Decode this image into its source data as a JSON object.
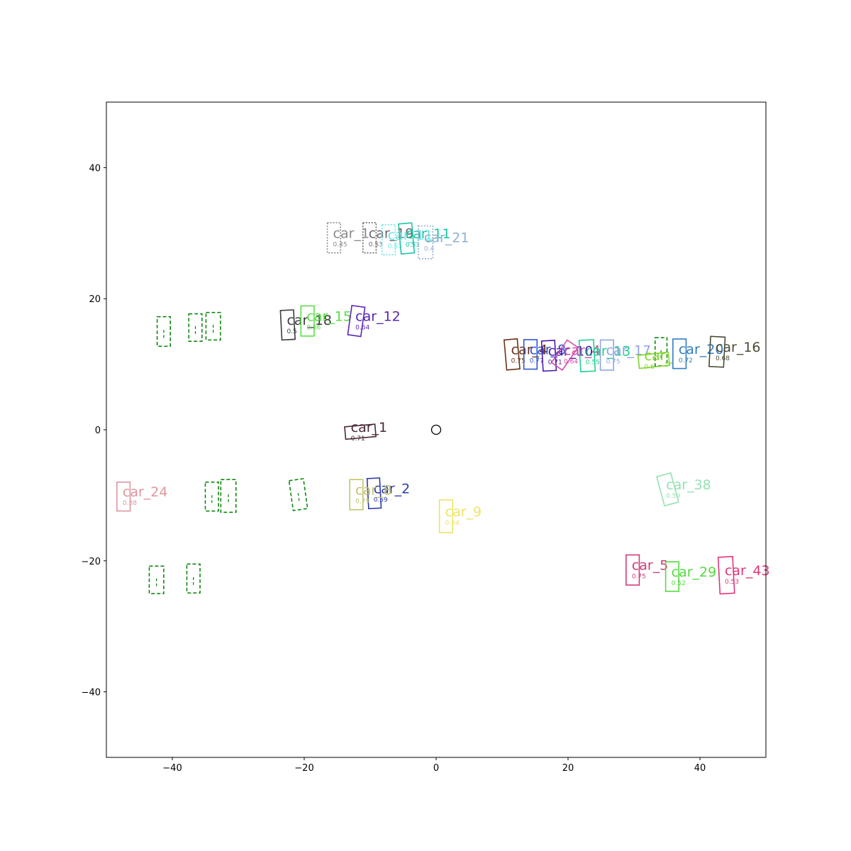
{
  "chart_data": {
    "type": "scatter",
    "title": "",
    "xlabel": "",
    "ylabel": "",
    "xlim": [
      -50,
      50
    ],
    "ylim": [
      -50,
      50
    ],
    "grid": false,
    "x_ticks": [
      -40,
      -20,
      0,
      20,
      40
    ],
    "y_ticks": [
      -40,
      -20,
      0,
      20,
      40
    ],
    "ego": {
      "x": 0,
      "y": 0,
      "marker": "circle"
    },
    "predictions": [
      {
        "name": "car_1",
        "score": "0.71",
        "color": "#4a2838",
        "x": -11.5,
        "y": -0.3,
        "w": 4.6,
        "l": 1.9,
        "angle": 5
      },
      {
        "name": "car_2",
        "score": "0.59",
        "color": "#2a3aa8",
        "x": -9.4,
        "y": -9.7,
        "w": 1.9,
        "l": 4.6,
        "angle": 3
      },
      {
        "name": "car_8",
        "score": "0.79",
        "color": "#c4c26e",
        "x": -12.1,
        "y": -9.9,
        "w": 2.0,
        "l": 4.6,
        "angle": 0
      },
      {
        "name": "car_9",
        "score": "0.64",
        "color": "#ede36a",
        "x": 1.5,
        "y": -13.2,
        "w": 2.0,
        "l": 5.0,
        "angle": 0
      },
      {
        "name": "car_24",
        "score": "0.38",
        "color": "#e0959c",
        "x": -47.4,
        "y": -10.2,
        "w": 2.0,
        "l": 4.4,
        "angle": 0
      },
      {
        "name": "car_18",
        "score": "0.5",
        "color": "#3c3c3c",
        "x": -22.5,
        "y": 16.0,
        "w": 2.0,
        "l": 4.5,
        "angle": 3
      },
      {
        "name": "car_15",
        "score": "0.56",
        "color": "#57e043",
        "x": -19.5,
        "y": 16.6,
        "w": 2.0,
        "l": 4.6,
        "angle": 0
      },
      {
        "name": "car_12",
        "score": "0.64",
        "color": "#5a25b5",
        "x": -12.1,
        "y": 16.6,
        "w": 2.0,
        "l": 4.5,
        "angle": -8
      },
      {
        "name": "car_19",
        "score": "0.53",
        "color": "#696969",
        "x": -10.1,
        "y": 29.3,
        "w": 2.0,
        "l": 4.6,
        "angle": 0,
        "dotted": true
      },
      {
        "name": "car_1",
        "score": "0.45",
        "color": "#8a8a8a",
        "x": -15.5,
        "y": 29.3,
        "w": 2.0,
        "l": 4.6,
        "angle": 0,
        "dotted": true
      },
      {
        "name": "car_11",
        "score": "0.51",
        "color": "#6ae6e6",
        "x": -7.2,
        "y": 29.0,
        "w": 2.0,
        "l": 4.6,
        "angle": 0,
        "dotted": true
      },
      {
        "name": "car_11",
        "score": "0.53",
        "color": "#1bc4a4",
        "x": -4.5,
        "y": 29.2,
        "w": 2.0,
        "l": 4.6,
        "angle": 5
      },
      {
        "name": "car_21",
        "score": "0.4",
        "color": "#8fb1d2",
        "x": -1.6,
        "y": 28.6,
        "w": 2.2,
        "l": 5.0,
        "angle": 0,
        "dotted": true
      },
      {
        "name": "car_4",
        "score": "0.75",
        "color": "#6b3318",
        "x": 11.5,
        "y": 11.5,
        "w": 2.0,
        "l": 4.6,
        "angle": 5
      },
      {
        "name": "car_8",
        "score": "0.77",
        "color": "#2f56d2",
        "x": 14.3,
        "y": 11.5,
        "w": 2.0,
        "l": 4.5,
        "angle": 0
      },
      {
        "name": "car_10",
        "score": "0.71",
        "color": "#4a1aa8",
        "x": 17.1,
        "y": 11.3,
        "w": 2.0,
        "l": 4.6,
        "angle": 3
      },
      {
        "name": "car_4",
        "score": "0.64",
        "color": "#d34aa8",
        "x": 19.5,
        "y": 11.4,
        "w": 2.0,
        "l": 4.2,
        "angle": -35
      },
      {
        "name": "car_13",
        "score": "0.55",
        "color": "#1fd191",
        "x": 22.9,
        "y": 11.3,
        "w": 2.2,
        "l": 4.8,
        "angle": 3
      },
      {
        "name": "car_17",
        "score": "0.75",
        "color": "#91a3e8",
        "x": 25.9,
        "y": 11.4,
        "w": 2.0,
        "l": 4.6,
        "angle": 0
      },
      {
        "name": "car_",
        "score": "0.6",
        "color": "#7ed628",
        "x": 33.0,
        "y": 10.6,
        "w": 4.6,
        "l": 2.0,
        "angle": 6
      },
      {
        "name": "car_20",
        "score": "0.72",
        "color": "#2f7cc2",
        "x": 36.9,
        "y": 11.6,
        "w": 2.0,
        "l": 4.5,
        "angle": 0
      },
      {
        "name": "car_16",
        "score": "0.68",
        "color": "#4a4a32",
        "x": 42.6,
        "y": 11.9,
        "w": 2.2,
        "l": 4.6,
        "angle": -3
      },
      {
        "name": "car_38",
        "score": "0.59",
        "color": "#95e2b2",
        "x": 35.1,
        "y": -9.1,
        "w": 2.2,
        "l": 4.6,
        "angle": 15
      },
      {
        "name": "car_5",
        "score": "0.75",
        "color": "#d13b7a",
        "x": 29.8,
        "y": -21.4,
        "w": 2.0,
        "l": 4.6,
        "angle": 0
      },
      {
        "name": "car_29",
        "score": "0.52",
        "color": "#4fdc3a",
        "x": 35.8,
        "y": -22.4,
        "w": 2.0,
        "l": 4.5,
        "angle": 0
      },
      {
        "name": "car_43",
        "score": "0.53",
        "color": "#e0357a",
        "x": 44.0,
        "y": -22.2,
        "w": 2.2,
        "l": 5.6,
        "angle": 3
      }
    ],
    "ground_truth": [
      {
        "x": -41.3,
        "y": 15.0,
        "w": 2.0,
        "l": 4.5,
        "angle": 0
      },
      {
        "x": -36.5,
        "y": 15.6,
        "w": 2.0,
        "l": 4.2,
        "angle": 0
      },
      {
        "x": -33.8,
        "y": 15.8,
        "w": 2.2,
        "l": 4.2,
        "angle": 0
      },
      {
        "x": -34.0,
        "y": -10.2,
        "w": 2.0,
        "l": 4.4,
        "angle": 0
      },
      {
        "x": -31.5,
        "y": -10.1,
        "w": 2.3,
        "l": 5.0,
        "angle": 0
      },
      {
        "x": -20.9,
        "y": -9.9,
        "w": 2.2,
        "l": 4.6,
        "angle": 8
      },
      {
        "x": -42.4,
        "y": -22.9,
        "w": 2.2,
        "l": 4.2,
        "angle": 0
      },
      {
        "x": -36.8,
        "y": -22.7,
        "w": 2.0,
        "l": 4.4,
        "angle": 0
      },
      {
        "x": 34.1,
        "y": 11.9,
        "w": 1.8,
        "l": 4.3,
        "angle": 0
      }
    ]
  }
}
